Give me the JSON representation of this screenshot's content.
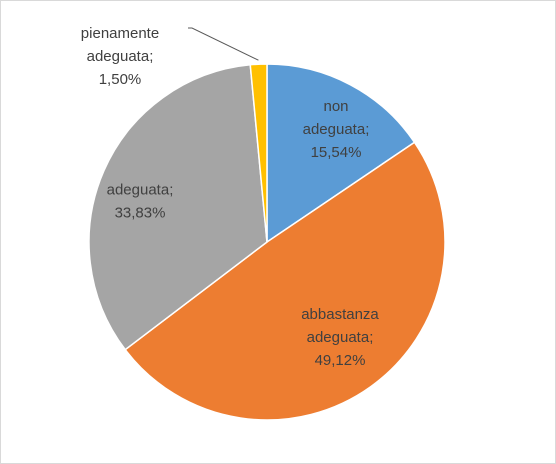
{
  "chart_data": {
    "type": "pie",
    "categories": [
      "non adeguata",
      "abbastanza adeguata",
      "adeguata",
      "pienamente adeguata"
    ],
    "values": [
      15.54,
      49.12,
      33.83,
      1.5
    ],
    "value_labels": [
      "15,54%",
      "49,12%",
      "33,83%",
      "1,50%"
    ],
    "label_separator": ";",
    "colors": [
      "#5b9bd5",
      "#ed7d31",
      "#a5a5a5",
      "#ffc000"
    ]
  }
}
